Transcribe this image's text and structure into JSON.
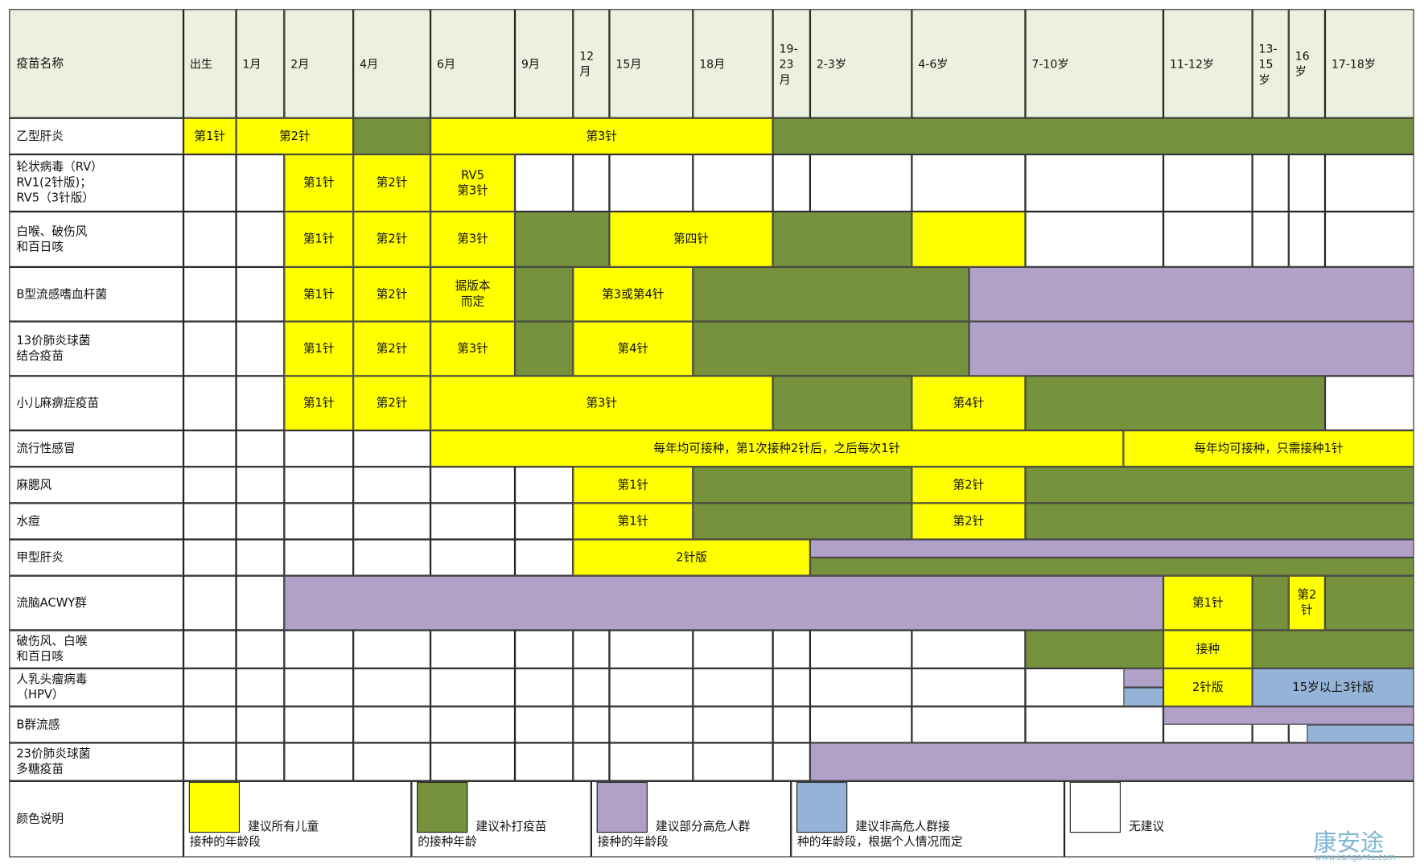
{
  "header": {
    "label": "疫苗名称",
    "columns": [
      "出生",
      "1月",
      "2月",
      "4月",
      "6月",
      "9月",
      "12\n月",
      "15月",
      "18月",
      "19-\n23\n月",
      "2-3岁",
      "4-6岁",
      "7-10岁",
      "11-12岁",
      "13-\n15\n岁",
      "16\n岁",
      "17-18岁"
    ]
  },
  "rows": [
    {
      "name": "乙型肝炎",
      "segments": [
        {
          "color": "#ffff00",
          "label": "第1针"
        },
        {
          "color": "#ffff00",
          "label": "第2针"
        },
        {
          "color": "#76923c"
        },
        {
          "color": "#ffff00",
          "label": "第3针"
        },
        {
          "color": "#76923c"
        }
      ]
    },
    {
      "name": "轮状病毒（RV）\nRV1(2针版)；\nRV5（3针版）",
      "segments": [
        {
          "color": "#ffff00",
          "label": "第1针"
        },
        {
          "color": "#ffff00",
          "label": "第2针"
        },
        {
          "color": "#ffff00",
          "label": "RV5\n第3针"
        }
      ]
    },
    {
      "name": "白喉、破伤风\n和百日咳",
      "segments": [
        {
          "color": "#ffff00",
          "label": "第1针"
        },
        {
          "color": "#ffff00",
          "label": "第2针"
        },
        {
          "color": "#ffff00",
          "label": "第3针"
        },
        {
          "color": "#76923c"
        },
        {
          "color": "#ffff00",
          "label": "第四针"
        },
        {
          "color": "#76923c"
        },
        {
          "color": "#ffff00"
        }
      ]
    },
    {
      "name": "B型流感嗜血杆菌",
      "segments": [
        {
          "color": "#ffff00",
          "label": "第1针"
        },
        {
          "color": "#ffff00",
          "label": "第2针"
        },
        {
          "color": "#ffff00",
          "label": "据版本\n而定"
        },
        {
          "color": "#76923c"
        },
        {
          "color": "#ffff00",
          "label": "第3或第4针"
        },
        {
          "color": "#76923c"
        },
        {
          "color": "#b1a0c7"
        }
      ]
    },
    {
      "name": "13价肺炎球菌\n结合疫苗",
      "segments": [
        {
          "color": "#ffff00",
          "label": "第1针"
        },
        {
          "color": "#ffff00",
          "label": "第2针"
        },
        {
          "color": "#ffff00",
          "label": "第3针"
        },
        {
          "color": "#76923c"
        },
        {
          "color": "#ffff00",
          "label": "第4针"
        },
        {
          "color": "#76923c"
        },
        {
          "color": "#b1a0c7"
        }
      ]
    },
    {
      "name": "小儿麻痹症疫苗",
      "segments": [
        {
          "color": "#ffff00",
          "label": "第1针"
        },
        {
          "color": "#ffff00",
          "label": "第2针"
        },
        {
          "color": "#ffff00",
          "label": "第3针"
        },
        {
          "color": "#76923c"
        },
        {
          "color": "#ffff00",
          "label": "第4针"
        },
        {
          "color": "#76923c"
        }
      ]
    },
    {
      "name": "流行性感冒",
      "segments": [
        {
          "color": "#ffff00",
          "label": "每年均可接种，第1次接种2针后，之后每次1针"
        },
        {
          "color": "#ffff00",
          "label": "每年均可接种，只需接种1针"
        }
      ]
    },
    {
      "name": "麻腮风",
      "segments": [
        {
          "color": "#ffff00",
          "label": "第1针"
        },
        {
          "color": "#76923c"
        },
        {
          "color": "#ffff00",
          "label": "第2针"
        },
        {
          "color": "#76923c"
        }
      ]
    },
    {
      "name": "水痘",
      "segments": [
        {
          "color": "#ffff00",
          "label": "第1针"
        },
        {
          "color": "#76923c"
        },
        {
          "color": "#ffff00",
          "label": "第2针"
        },
        {
          "color": "#76923c"
        }
      ]
    },
    {
      "name": "甲型肝炎",
      "segments": [
        {
          "color": "#ffff00",
          "label": "2针版"
        },
        {
          "color": "#b1a0c7"
        },
        {
          "color": "#76923c"
        }
      ]
    },
    {
      "name": "流脑ACWY群",
      "segments": [
        {
          "color": "#b1a0c7"
        },
        {
          "color": "#ffff00",
          "label": "第1针"
        },
        {
          "color": "#76923c"
        },
        {
          "color": "#ffff00",
          "label": "第2\n针"
        },
        {
          "color": "#76923c"
        }
      ]
    },
    {
      "name": "破伤风、白喉\n和百日咳",
      "segments": [
        {
          "color": "#76923c"
        },
        {
          "color": "#ffff00",
          "label": "接种"
        },
        {
          "color": "#76923c"
        }
      ]
    },
    {
      "name": "人乳头瘤病毒\n（HPV）",
      "segments": [
        {
          "color": "#b1a0c7"
        },
        {
          "color": "#95b3d7"
        },
        {
          "color": "#ffff00",
          "label": "2针版"
        },
        {
          "color": "#95b3d7",
          "label": "15岁以上3针版"
        }
      ]
    },
    {
      "name": "B群流感",
      "segments": [
        {
          "color": "#b1a0c7"
        },
        {
          "color": "#95b3d7"
        }
      ]
    },
    {
      "name": "23价肺炎球菌\n多糖疫苗",
      "segments": [
        {
          "color": "#b1a0c7"
        }
      ]
    }
  ],
  "legend": {
    "label": "颜色说明",
    "items": [
      {
        "color": "#ffff00",
        "text": "建议所有儿童\n接种的年龄段"
      },
      {
        "color": "#76923c",
        "text": "建议补打疫苗\n的接种年龄"
      },
      {
        "color": "#b1a0c7",
        "text": "建议部分高危人群\n接种的年龄段"
      },
      {
        "color": "#95b3d7",
        "text": "建议非高危人群接\n种的年龄段，根据个人情况而定"
      },
      {
        "color": "#ffffff",
        "text": "无建议"
      }
    ]
  },
  "watermark": {
    "logo": "康安途",
    "url": "www.kangantu.com"
  }
}
